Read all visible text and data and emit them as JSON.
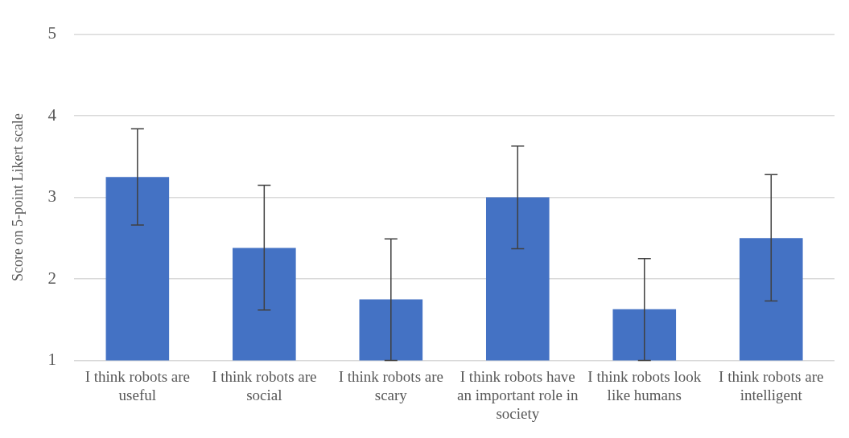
{
  "chart_data": {
    "type": "bar",
    "ylabel": "Score on 5-point Likert scale",
    "categories": [
      "I think robots are useful",
      "I think robots are social",
      "I think robots are scary",
      "I think robots have an important role in society",
      "I think robots look like humans",
      "I think robots are intelligent"
    ],
    "values": [
      3.25,
      2.38,
      1.75,
      3.0,
      1.63,
      2.5
    ],
    "color": "#4472c4",
    "errors": [
      [
        2.66,
        3.84
      ],
      [
        1.62,
        3.15
      ],
      [
        1.0,
        2.49
      ],
      [
        2.37,
        3.63
      ],
      [
        1.0,
        2.25
      ],
      [
        1.73,
        3.28
      ]
    ],
    "ylim": [
      1,
      5
    ],
    "yticks": [
      1,
      2,
      3,
      4,
      5
    ],
    "grid": "y"
  }
}
